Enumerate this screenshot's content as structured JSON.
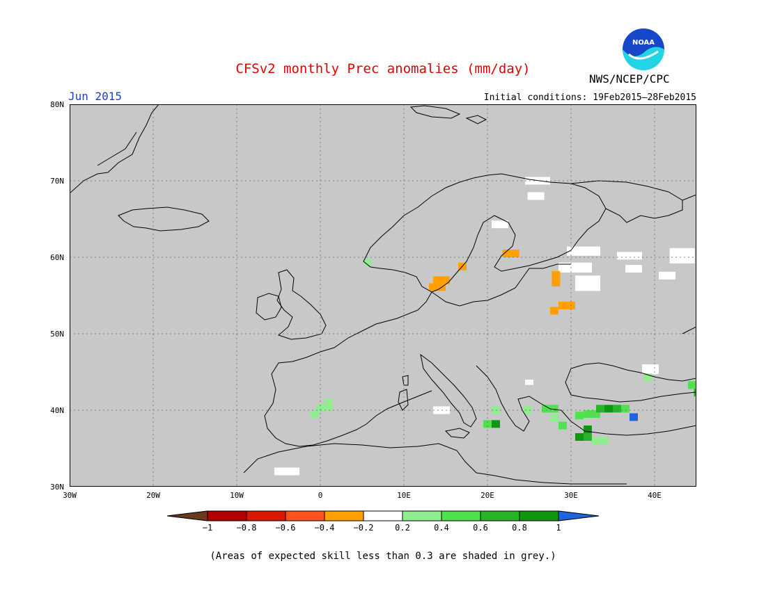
{
  "title": "CFSv2 monthly Prec anomalies (mm/day)",
  "agency": "NWS/NCEP/CPC",
  "logo_text": "NOAA",
  "valid_month": "Jun 2015",
  "initial_conditions": "Initial conditions: 19Feb2015–28Feb2015",
  "footnote": "(Areas of expected skill less than 0.3 are shaded in grey.)",
  "map": {
    "lon_range": [
      -30,
      45
    ],
    "lat_range": [
      30,
      80
    ],
    "background_color": "#c8c8c8",
    "lat_labels": [
      "80N",
      "70N",
      "60N",
      "50N",
      "40N",
      "30N"
    ],
    "lon_labels": [
      "30W",
      "20W",
      "10W",
      "0",
      "10E",
      "20E",
      "30E",
      "40E"
    ],
    "cells": [
      {
        "lon": 24.5,
        "lat": 70.5,
        "w": 3,
        "h": 1,
        "class": "white"
      },
      {
        "lon": 24.8,
        "lat": 68.5,
        "w": 2,
        "h": 1,
        "class": "white"
      },
      {
        "lon": 20.5,
        "lat": 64.8,
        "w": 2,
        "h": 1,
        "class": "white"
      },
      {
        "lon": 29.5,
        "lat": 61.4,
        "w": 4,
        "h": 1.2,
        "class": "white"
      },
      {
        "lon": 35.5,
        "lat": 60.7,
        "w": 3,
        "h": 1,
        "class": "white"
      },
      {
        "lon": 41.8,
        "lat": 61.2,
        "w": 3,
        "h": 2,
        "class": "white"
      },
      {
        "lon": 28.5,
        "lat": 59.3,
        "w": 4,
        "h": 1.3,
        "class": "white"
      },
      {
        "lon": 30.5,
        "lat": 57.6,
        "w": 3,
        "h": 2,
        "class": "white"
      },
      {
        "lon": 36.5,
        "lat": 59.0,
        "w": 2,
        "h": 1,
        "class": "white"
      },
      {
        "lon": 40.5,
        "lat": 58.1,
        "w": 2,
        "h": 1,
        "class": "white"
      },
      {
        "lon": 13.5,
        "lat": 40.5,
        "w": 2,
        "h": 1,
        "class": "white"
      },
      {
        "lon": 24.5,
        "lat": 44.0,
        "w": 1,
        "h": 0.7,
        "class": "white"
      },
      {
        "lon": 38.5,
        "lat": 46.0,
        "w": 2,
        "h": 1.3,
        "class": "white"
      },
      {
        "lon": -5.5,
        "lat": 32.5,
        "w": 3,
        "h": 1,
        "class": "white"
      },
      {
        "lon": 21.8,
        "lat": 61.0,
        "w": 2,
        "h": 1,
        "class": "-0.4"
      },
      {
        "lon": 27.7,
        "lat": 58.2,
        "w": 1,
        "h": 2,
        "class": "-0.4"
      },
      {
        "lon": 28.5,
        "lat": 54.2,
        "w": 2,
        "h": 1,
        "class": "-0.4"
      },
      {
        "lon": 27.5,
        "lat": 53.5,
        "w": 1,
        "h": 1,
        "class": "-0.4"
      },
      {
        "lon": 13.5,
        "lat": 57.5,
        "w": 2,
        "h": 1,
        "class": "-0.4"
      },
      {
        "lon": 13.0,
        "lat": 56.6,
        "w": 2,
        "h": 1,
        "class": "-0.4"
      },
      {
        "lon": 16.5,
        "lat": 59.3,
        "w": 1,
        "h": 1,
        "class": "-0.4"
      },
      {
        "lon": 5.3,
        "lat": 59.8,
        "w": 0.8,
        "h": 1,
        "class": "0.2"
      },
      {
        "lon": 0.5,
        "lat": 41.5,
        "w": 1,
        "h": 1.5,
        "class": "0.2"
      },
      {
        "lon": -0.5,
        "lat": 40.8,
        "w": 1,
        "h": 1,
        "class": "0.2"
      },
      {
        "lon": -1.2,
        "lat": 40.0,
        "w": 1,
        "h": 1,
        "class": "0.2"
      },
      {
        "lon": 20.5,
        "lat": 40.5,
        "w": 1,
        "h": 1,
        "class": "0.2"
      },
      {
        "lon": 24.3,
        "lat": 40.5,
        "w": 1,
        "h": 1,
        "class": "0.2"
      },
      {
        "lon": 26.5,
        "lat": 40.7,
        "w": 2,
        "h": 1,
        "class": "0.4"
      },
      {
        "lon": 27.5,
        "lat": 39.5,
        "w": 1,
        "h": 1,
        "class": "0.2"
      },
      {
        "lon": 28.5,
        "lat": 38.5,
        "w": 1,
        "h": 1,
        "class": "0.4"
      },
      {
        "lon": 19.5,
        "lat": 38.7,
        "w": 1,
        "h": 1,
        "class": "0.4"
      },
      {
        "lon": 20.5,
        "lat": 38.7,
        "w": 1,
        "h": 1,
        "class": "0.8"
      },
      {
        "lon": 30.5,
        "lat": 39.8,
        "w": 1,
        "h": 1,
        "class": "0.4"
      },
      {
        "lon": 31.5,
        "lat": 40.0,
        "w": 2,
        "h": 1,
        "class": "0.4"
      },
      {
        "lon": 33.0,
        "lat": 40.7,
        "w": 1,
        "h": 1,
        "class": "0.6"
      },
      {
        "lon": 34.0,
        "lat": 40.7,
        "w": 1,
        "h": 1,
        "class": "0.8"
      },
      {
        "lon": 35.0,
        "lat": 40.7,
        "w": 1,
        "h": 1,
        "class": "0.6"
      },
      {
        "lon": 36.0,
        "lat": 40.7,
        "w": 1,
        "h": 1,
        "class": "0.4"
      },
      {
        "lon": 31.5,
        "lat": 38.0,
        "w": 1,
        "h": 1,
        "class": "0.8"
      },
      {
        "lon": 30.5,
        "lat": 37.0,
        "w": 1,
        "h": 1,
        "class": "0.8"
      },
      {
        "lon": 31.5,
        "lat": 37.0,
        "w": 1,
        "h": 1,
        "class": "0.6"
      },
      {
        "lon": 32.5,
        "lat": 36.5,
        "w": 2,
        "h": 1,
        "class": "0.2"
      },
      {
        "lon": 37.0,
        "lat": 39.6,
        "w": 1,
        "h": 1,
        "class": "blue"
      },
      {
        "lon": 44.0,
        "lat": 43.8,
        "w": 1,
        "h": 1,
        "class": "0.4"
      },
      {
        "lon": 44.7,
        "lat": 42.8,
        "w": 0.6,
        "h": 1,
        "class": "0.6"
      },
      {
        "lon": 38.7,
        "lat": 44.8,
        "w": 1,
        "h": 1,
        "class": "0.2"
      }
    ]
  },
  "colorbar": {
    "labels": [
      "−1",
      "−0.8",
      "−0.6",
      "−0.4",
      "−0.2",
      "0.2",
      "0.4",
      "0.6",
      "0.8",
      "1"
    ],
    "colors": [
      "#6b3a1e",
      "#b00000",
      "#d81800",
      "#ff5020",
      "#ffa000",
      "#ffffff",
      "#90ee90",
      "#50e050",
      "#28b428",
      "#109610",
      "#1e64dc"
    ]
  }
}
